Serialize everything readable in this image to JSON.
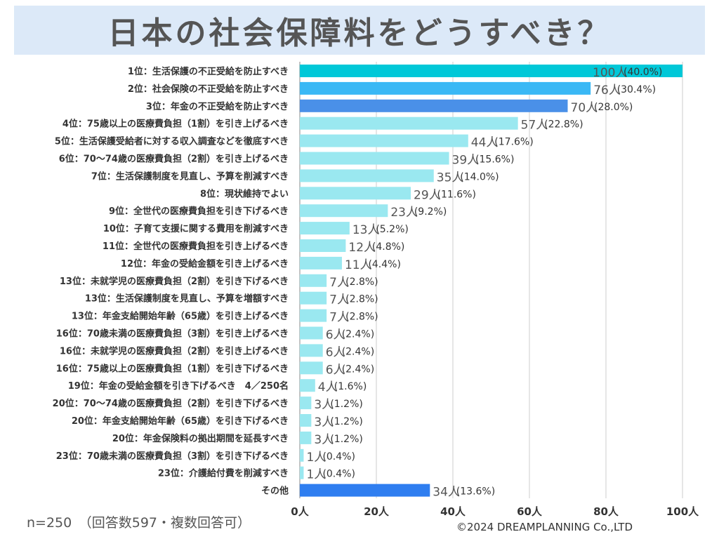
{
  "chart_data": {
    "type": "bar",
    "orientation": "horizontal",
    "title": "日本の社会保障料をどうすべき？",
    "xlim": [
      0,
      100
    ],
    "xticks": [
      0,
      20,
      40,
      60,
      80,
      100
    ],
    "tick_labels": [
      "0人",
      "20人",
      "40人",
      "60人",
      "80人",
      "100人"
    ],
    "unit": "人",
    "categories": [
      "1位：生活保護の不正受給を防止すべき",
      "2位：社会保険の不正受給を防止すべき",
      "3位：年金の不正受給を防止すべき",
      "4位：75歳以上の医療費負担（1割）を引き上げるべき",
      "5位：生活保護受給者に対する収入調査などを徹底すべき",
      "6位：70～74歳の医療費負担（2割）を引き上げるべき",
      "7位：生活保護制度を見直し、予算を削減すべき",
      "8位：現状維持でよい",
      "9位：全世代の医療費負担を引き下げるべき",
      "10位：子育て支援に関する費用を削減すべき",
      "11位：全世代の医療費負担を引き上げるべき",
      "12位：年金の受給金額を引き上げるべき",
      "13位：未就学児の医療費負担（2割）を引き下げるべき",
      "13位：生活保護制度を見直し、予算を増額すべき",
      "13位：年金支給開始年齢（65歳）を引き上げるべき",
      "16位：70歳未満の医療費負担（3割）を引き上げるべき",
      "16位：未就学児の医療費負担（2割）を引き上げるべき",
      "16位：75歳以上の医療費負担（1割）を引き下げるべき",
      "19位：年金の受給金額を引き下げるべき　4／250名",
      "20位：70～74歳の医療費負担（2割）を引き下げるべき",
      "20位：年金支給開始年齢（65歳）を引き下げるべき",
      "20位：年金保険料の拠出期間を延長すべき",
      "23位：70歳未満の医療費負担（3割）を引き下げるべき",
      "23位：介護給付費を削減すべき",
      "その他"
    ],
    "values": [
      100,
      76,
      70,
      57,
      44,
      39,
      35,
      29,
      23,
      13,
      12,
      11,
      7,
      7,
      7,
      6,
      6,
      6,
      4,
      3,
      3,
      3,
      1,
      1,
      34
    ],
    "value_labels": [
      "100人",
      "76人",
      "70人",
      "57人",
      "44人",
      "39人",
      "35人",
      "29人",
      "23人",
      "13人",
      "12人",
      "11人",
      "7人",
      "7人",
      "7人",
      "6人",
      "6人",
      "6人",
      "4人",
      "3人",
      "3人",
      "3人",
      "1人",
      "1人",
      "34人"
    ],
    "percent_labels": [
      "(40.0%)",
      "(30.4%)",
      "(28.0%)",
      "(22.8%)",
      "(17.6%)",
      "(15.6%)",
      "(14.0%)",
      "(11.6%)",
      "(9.2%)",
      "(5.2%)",
      "(4.8%)",
      "(4.4%)",
      "(2.8%)",
      "(2.8%)",
      "(2.8%)",
      "(2.4%)",
      "(2.4%)",
      "(2.4%)",
      "(1.6%)",
      "(1.2%)",
      "(1.2%)",
      "(1.2%)",
      "(0.4%)",
      "(0.4%)",
      "(13.6%)"
    ],
    "colors": {
      "rank1": "#00c8d8",
      "rank2": "#3ab8f5",
      "rank3": "#4a90e8",
      "default": "#9ae8f0",
      "other": "#2f7ef0",
      "grid": "#cccccc",
      "axis": "#888888"
    }
  },
  "footer": {
    "sample_note": "n=250　（回答数597・複数回答可）",
    "copyright": "©2024 DREAMPLANNING Co.,LTD"
  }
}
